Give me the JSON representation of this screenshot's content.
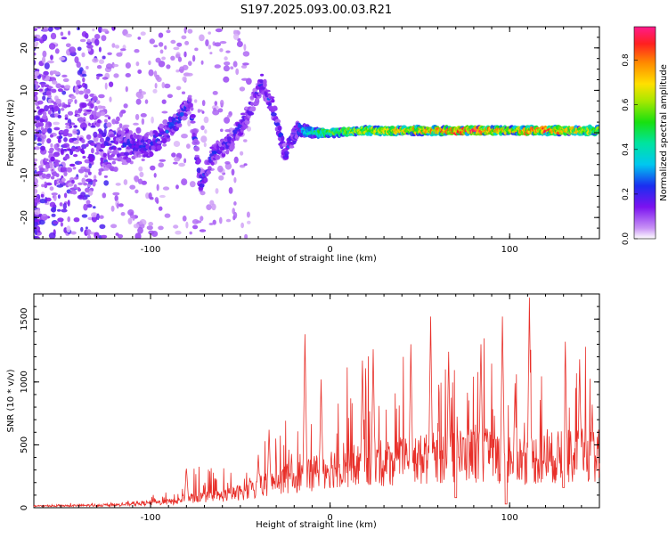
{
  "title": "S197.2025.093.00.03.R21",
  "chart_data": [
    {
      "type": "heatmap",
      "xlabel": "Height of straight line (km)",
      "ylabel": "Frequency (Hz)",
      "xlim": [
        -165,
        150
      ],
      "ylim": [
        -25,
        25
      ],
      "x_ticks": [
        -100,
        0,
        100
      ],
      "y_ticks": [
        -20,
        -10,
        0,
        10,
        20
      ],
      "colorbar": {
        "label": "Normalized spectral amplitude",
        "range": [
          0,
          0.95
        ],
        "ticks": [
          0.0,
          0.2,
          0.4,
          0.6,
          0.8
        ],
        "tick_labels": [
          "0.0",
          "0.2",
          "0.4",
          "0.6",
          "0.8"
        ]
      },
      "ridge": [
        {
          "x": -160,
          "f": 1,
          "amp": 0.18,
          "spread": 14
        },
        {
          "x": -140,
          "f": -1,
          "amp": 0.18,
          "spread": 14
        },
        {
          "x": -120,
          "f": -3,
          "amp": 0.2,
          "spread": 6
        },
        {
          "x": -110,
          "f": -3,
          "amp": 0.24,
          "spread": 3
        },
        {
          "x": -100,
          "f": -3,
          "amp": 0.24,
          "spread": 2.5
        },
        {
          "x": -92,
          "f": 0,
          "amp": 0.26,
          "spread": 2.5
        },
        {
          "x": -85,
          "f": 3,
          "amp": 0.28,
          "spread": 2
        },
        {
          "x": -78,
          "f": 7,
          "amp": 0.22,
          "spread": 2
        },
        {
          "x": -72,
          "f": -12,
          "amp": 0.24,
          "spread": 2
        },
        {
          "x": -65,
          "f": -5,
          "amp": 0.22,
          "spread": 2
        },
        {
          "x": -55,
          "f": -2,
          "amp": 0.22,
          "spread": 2
        },
        {
          "x": -45,
          "f": 5,
          "amp": 0.22,
          "spread": 2
        },
        {
          "x": -38,
          "f": 12,
          "amp": 0.22,
          "spread": 2
        },
        {
          "x": -32,
          "f": 6,
          "amp": 0.24,
          "spread": 2
        },
        {
          "x": -25,
          "f": -5,
          "amp": 0.24,
          "spread": 2
        },
        {
          "x": -18,
          "f": 1,
          "amp": 0.3,
          "spread": 1.5
        },
        {
          "x": -10,
          "f": 0,
          "amp": 0.45,
          "spread": 1
        },
        {
          "x": 0,
          "f": 0,
          "amp": 0.55,
          "spread": 0.8
        },
        {
          "x": 20,
          "f": 0.5,
          "amp": 0.6,
          "spread": 0.8
        },
        {
          "x": 40,
          "f": 0.5,
          "amp": 0.7,
          "spread": 0.8
        },
        {
          "x": 60,
          "f": 0.5,
          "amp": 0.75,
          "spread": 0.8
        },
        {
          "x": 80,
          "f": 0.5,
          "amp": 0.85,
          "spread": 0.8
        },
        {
          "x": 100,
          "f": 0.5,
          "amp": 0.7,
          "spread": 0.8
        },
        {
          "x": 120,
          "f": 0.5,
          "amp": 0.8,
          "spread": 0.8
        },
        {
          "x": 150,
          "f": 0.5,
          "amp": 0.6,
          "spread": 0.8
        }
      ]
    },
    {
      "type": "line",
      "xlabel": "Height of straight line (km)",
      "ylabel": "SNR (10 * v/v)",
      "xlim": [
        -165,
        150
      ],
      "ylim": [
        0,
        1700
      ],
      "x_ticks": [
        -100,
        0,
        100
      ],
      "y_ticks": [
        0,
        500,
        1000,
        1500
      ],
      "color": "#e8302a",
      "envelope": [
        {
          "x": -165,
          "base": 15,
          "spike": 10
        },
        {
          "x": -120,
          "base": 25,
          "spike": 15
        },
        {
          "x": -105,
          "base": 40,
          "spike": 40
        },
        {
          "x": -85,
          "base": 60,
          "spike": 110
        },
        {
          "x": -80,
          "base": 90,
          "spike": 250
        },
        {
          "x": -60,
          "base": 110,
          "spike": 200
        },
        {
          "x": -40,
          "base": 180,
          "spike": 250
        },
        {
          "x": -30,
          "base": 250,
          "spike": 400
        },
        {
          "x": -15,
          "base": 300,
          "spike": 500
        },
        {
          "x": 0,
          "base": 380,
          "spike": 600
        },
        {
          "x": 20,
          "base": 400,
          "spike": 750
        },
        {
          "x": 50,
          "base": 450,
          "spike": 800
        },
        {
          "x": 80,
          "base": 500,
          "spike": 800
        },
        {
          "x": 110,
          "base": 450,
          "spike": 900
        },
        {
          "x": 150,
          "base": 500,
          "spike": 700
        }
      ],
      "peaks": [
        {
          "x": -80,
          "y": 310
        },
        {
          "x": -40,
          "y": 420
        },
        {
          "x": -34,
          "y": 620
        },
        {
          "x": -14,
          "y": 1380
        },
        {
          "x": -5,
          "y": 1020
        },
        {
          "x": 18,
          "y": 1170
        },
        {
          "x": 24,
          "y": 1260
        },
        {
          "x": 45,
          "y": 1300
        },
        {
          "x": 56,
          "y": 1520
        },
        {
          "x": 66,
          "y": 1240
        },
        {
          "x": 84,
          "y": 1300
        },
        {
          "x": 96,
          "y": 1520
        },
        {
          "x": 103,
          "y": 990
        },
        {
          "x": 111,
          "y": 1670
        },
        {
          "x": 131,
          "y": 1320
        },
        {
          "x": 139,
          "y": 1180
        },
        {
          "x": 146,
          "y": 820
        }
      ],
      "dips": [
        {
          "x": 98,
          "y": 30
        },
        {
          "x": 130,
          "y": 160
        },
        {
          "x": 70,
          "y": 80
        }
      ]
    }
  ]
}
